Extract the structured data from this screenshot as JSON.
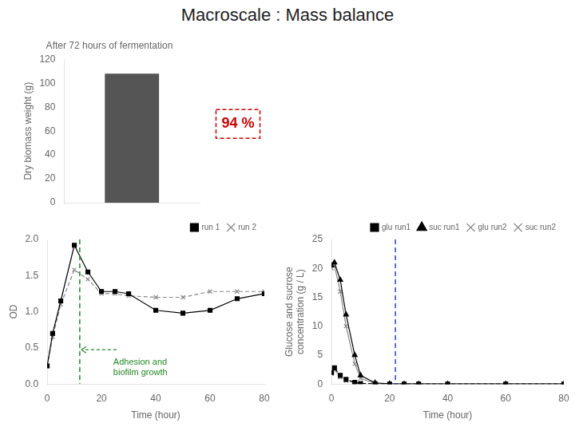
{
  "chart_data": [
    {
      "type": "bar",
      "title": "Macroscale : Mass balance",
      "subtitle": "After 72 hours of fermentation",
      "categories": [
        null
      ],
      "values": [
        108
      ],
      "color": "#555555",
      "y_label": "Dry biomass weight (g)",
      "ylim": [
        0,
        120
      ],
      "yticks": [
        0,
        20,
        40,
        60,
        80,
        100,
        120
      ],
      "grid": false,
      "tick_labels": "y",
      "annotations": [
        {
          "text": "94 %",
          "color": "#cc0000"
        }
      ]
    },
    {
      "type": "line",
      "x_label": "Time (hour)",
      "y_label": "OD",
      "x": [
        0,
        2,
        5,
        10,
        15,
        20,
        25,
        30,
        40,
        50,
        60,
        70,
        80
      ],
      "series": [
        {
          "name": "run 1",
          "color": "#000000",
          "marker": "square",
          "line_style": "solid",
          "values": [
            0.25,
            0.7,
            1.15,
            1.92,
            1.55,
            1.28,
            1.28,
            1.25,
            1.02,
            0.98,
            1.02,
            1.18,
            1.25
          ]
        },
        {
          "name": "run 2",
          "color": "#888888",
          "marker": "x",
          "line_style": "dashed",
          "values": [
            0.25,
            0.65,
            1.1,
            1.58,
            1.45,
            1.25,
            1.25,
            1.22,
            1.2,
            1.2,
            1.28,
            1.28,
            1.28
          ]
        }
      ],
      "xlim": [
        0,
        80
      ],
      "xticks": [
        0,
        20,
        40,
        60,
        80
      ],
      "ylim": [
        0,
        2
      ],
      "yticks": [
        {
          "value": 0,
          "label": "0.0"
        },
        {
          "value": 0.5,
          "label": "0.5"
        },
        {
          "value": 1,
          "label": "1.0"
        },
        {
          "value": 1.5,
          "label": "1.5"
        },
        {
          "value": 2,
          "label": "2.0"
        }
      ],
      "grid": false,
      "legend": "upper right",
      "vlines": [
        {
          "value": 12,
          "color": "#228822"
        }
      ],
      "annotations": [
        {
          "text": "Adhesion and\nbiofilm growth",
          "color": "#228822"
        }
      ]
    },
    {
      "type": "line",
      "x_label": "Time (hour)",
      "y_label": "Glucose and sucrose\nconcentration (g / L)",
      "x": [
        0,
        1,
        3,
        5,
        8,
        10,
        15,
        20,
        25,
        30,
        40,
        60,
        80
      ],
      "series": [
        {
          "name": "glu run1",
          "color": "#000000",
          "marker": "square",
          "line_style": "dashed",
          "values": [
            2.0,
            2.8,
            1.5,
            0.8,
            0.3,
            0.1,
            0.05,
            0.0,
            0.0,
            0.0,
            0.0,
            0.0,
            0.0
          ]
        },
        {
          "name": "suc run1",
          "color": "#000000",
          "marker": "triangle",
          "line_style": "solid",
          "values": [
            20.5,
            21.0,
            18.0,
            12.0,
            5.0,
            1.5,
            0.2,
            0.05,
            0.0,
            0.0,
            0.0,
            0.0,
            0.0
          ]
        },
        {
          "name": "glu run2",
          "color": "#888888",
          "marker": "x",
          "line_style": "dashed",
          "values": [
            1.8,
            2.5,
            1.2,
            0.6,
            0.2,
            0.08,
            0.02,
            0.0,
            0.0,
            0.0,
            0.0,
            0.0,
            0.0
          ]
        },
        {
          "name": "suc run2",
          "color": "#888888",
          "marker": "x",
          "line_style": "solid",
          "values": [
            20.0,
            20.5,
            16.0,
            10.0,
            3.5,
            1.0,
            0.1,
            0.02,
            0.0,
            0.0,
            0.0,
            0.0,
            0.0
          ]
        }
      ],
      "xlim": [
        0,
        80
      ],
      "xticks": [
        0,
        20,
        40,
        60,
        80
      ],
      "ylim": [
        0,
        25
      ],
      "yticks": [
        0,
        5,
        10,
        15,
        20,
        25
      ],
      "grid": false,
      "legend": "upper right",
      "vlines": [
        {
          "value": 22,
          "color": "#2244ee"
        }
      ]
    }
  ]
}
